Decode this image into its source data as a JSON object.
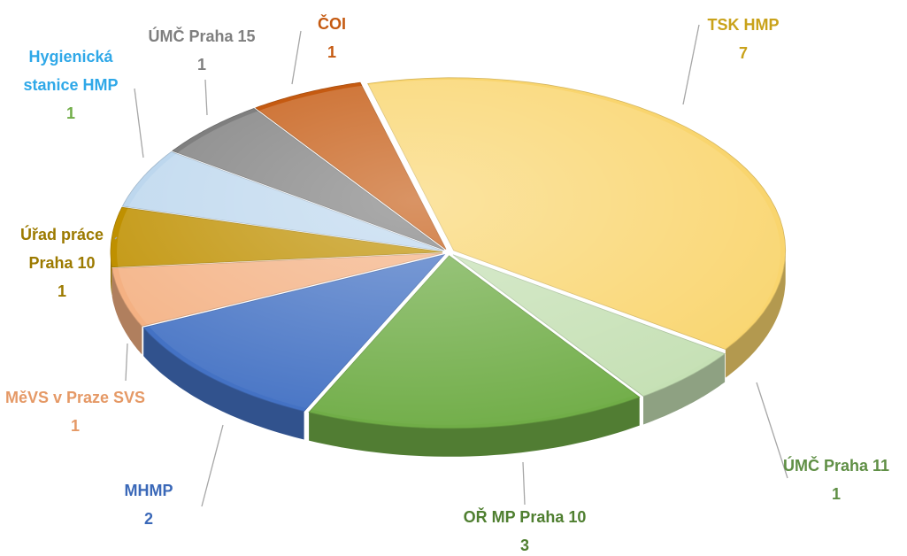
{
  "chart_data": {
    "type": "pie3d",
    "categories": [
      "TSK HMP",
      "ÚMČ Praha 11",
      "OŘ MP Praha 10",
      "MHMP",
      "MěVS v Praze SVS",
      "Úřad práce Praha 10",
      "Hygienická stanice HMP",
      "ÚMČ Praha 15",
      "ČOI"
    ],
    "values": [
      7,
      1,
      3,
      2,
      1,
      1,
      1,
      1,
      1
    ],
    "colors": [
      "#f9d56e",
      "#c5e0b4",
      "#70ad47",
      "#4472c4",
      "#f4b183",
      "#bf9000",
      "#bdd7ee",
      "#7f7f7f",
      "#c55a11"
    ],
    "label_colors": [
      "#c9a21a",
      "#5f8f45",
      "#4f7f30",
      "#3a68b8",
      "#e59966",
      "#9c7a00",
      "#2fa8e8",
      "#7f7f7f",
      "#c55a11"
    ],
    "value_colors": [
      "#c9a21a",
      "#5f8f45",
      "#4f7f30",
      "#3a68b8",
      "#e59966",
      "#9c7a00",
      "#70ad47",
      "#7f7f7f",
      "#c55a11"
    ]
  }
}
